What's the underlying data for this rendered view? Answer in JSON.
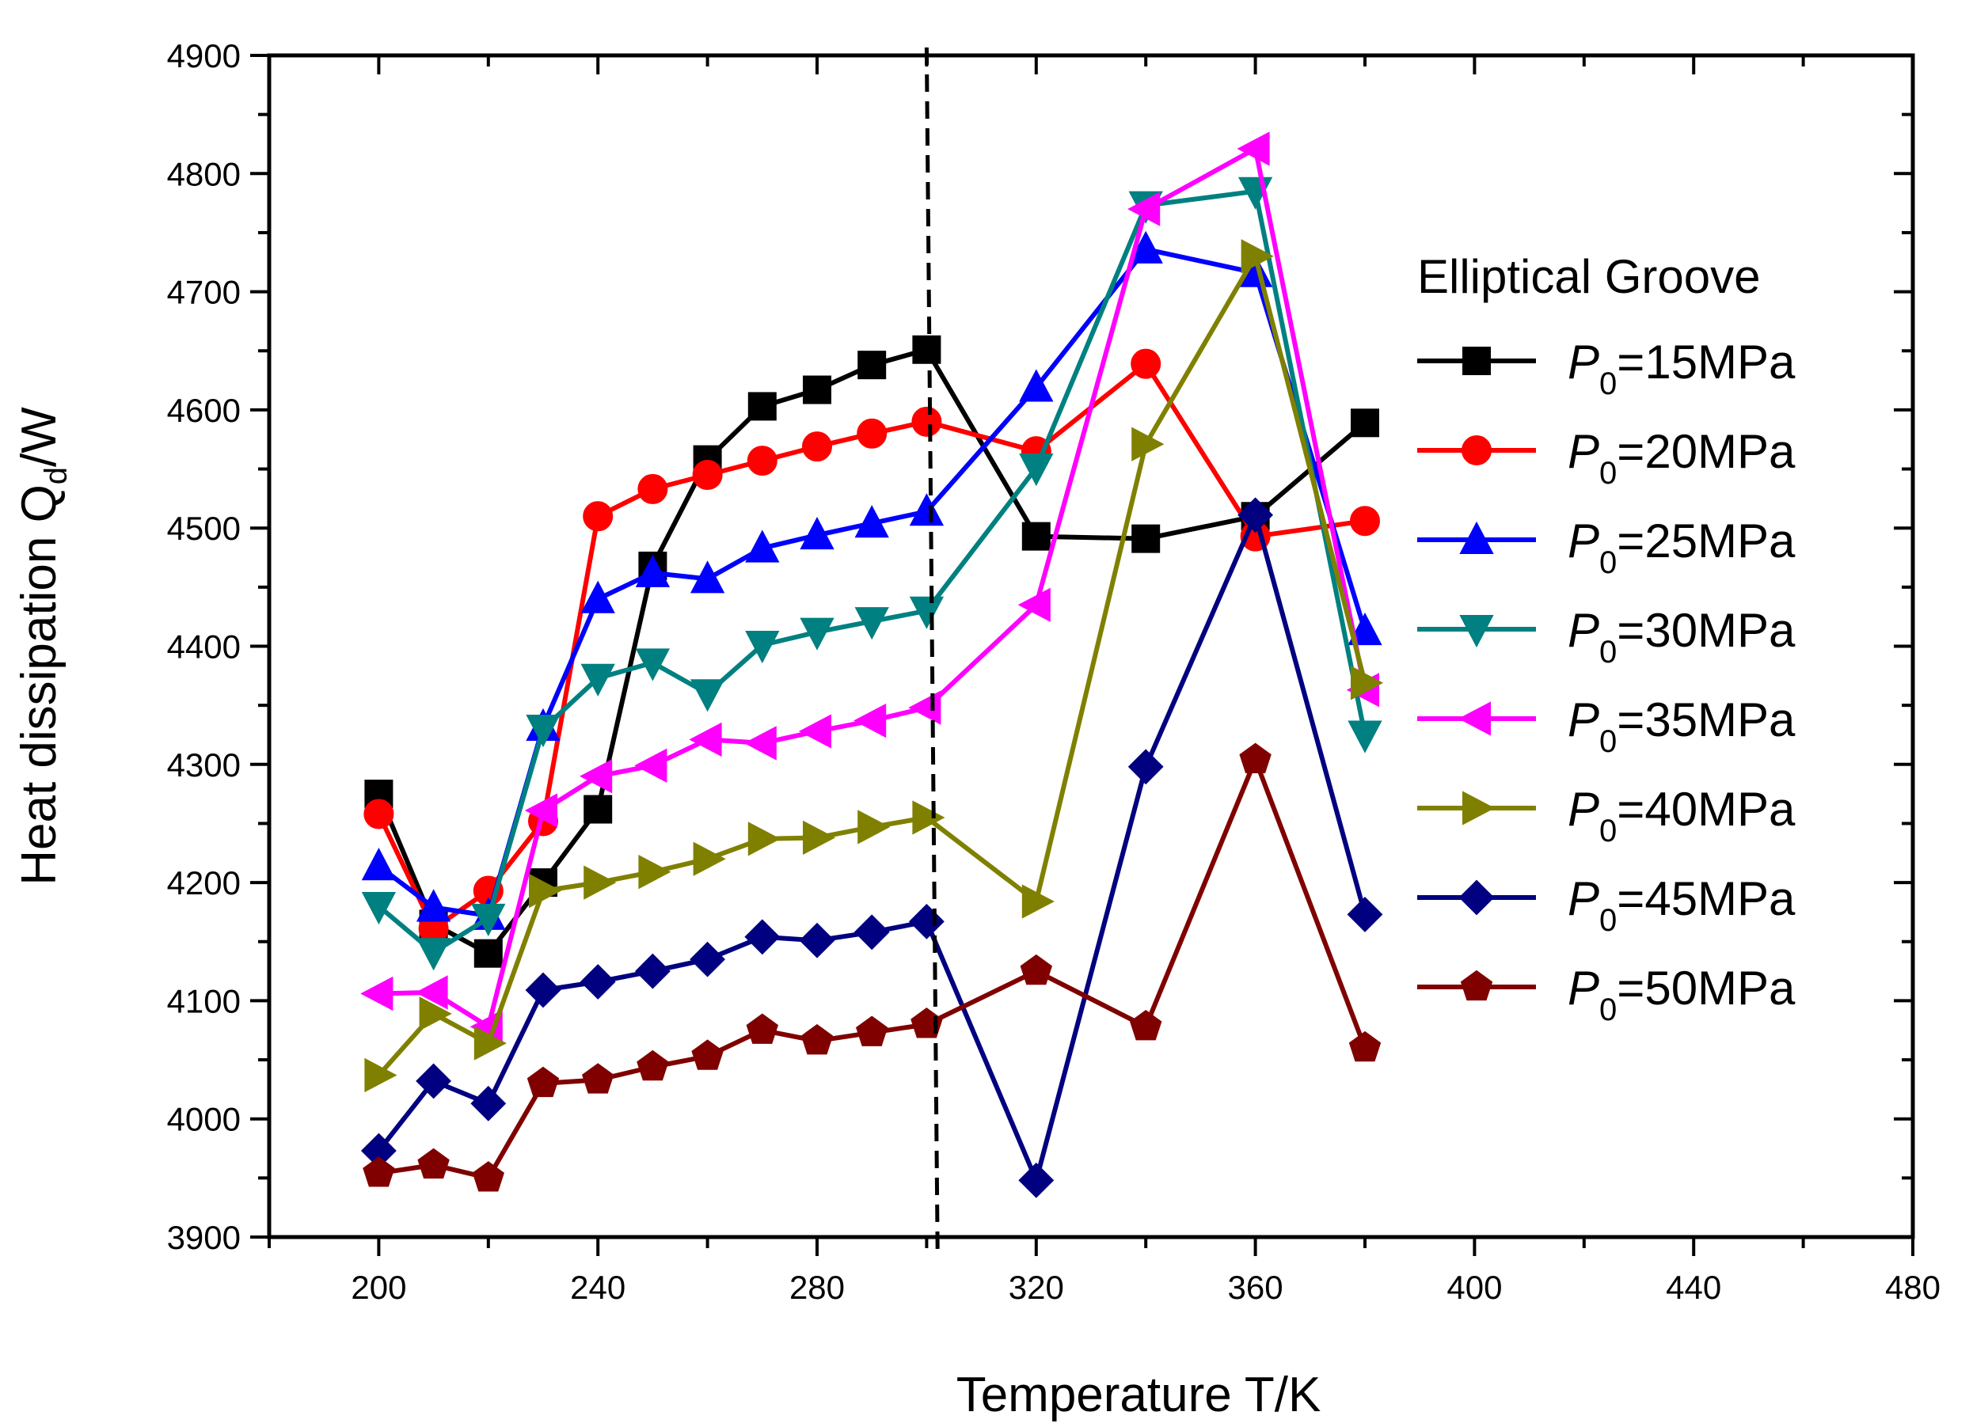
{
  "chart_data": {
    "type": "line",
    "title": "",
    "xlabel": "Temperature T/K",
    "ylabel": "Heat dissipation Q",
    "ylabel_subscript": "d",
    "ylabel_suffix": "/W",
    "xlim": [
      180,
      480
    ],
    "ylim": [
      3900,
      4900
    ],
    "xticks": [
      200,
      240,
      280,
      320,
      360,
      400,
      440,
      480
    ],
    "yticks": [
      3900,
      4000,
      4100,
      4200,
      4300,
      4400,
      4500,
      4600,
      4700,
      4800,
      4900
    ],
    "legend_title": "Elliptical Groove",
    "legend_position": "right",
    "reference_line": {
      "style": "dashed",
      "x_top": 300,
      "x_bottom": 302
    },
    "x": [
      200,
      210,
      220,
      230,
      240,
      250,
      260,
      270,
      280,
      290,
      300,
      320,
      340,
      360,
      380
    ],
    "series": [
      {
        "name_prefix": "P",
        "name_sub": "0",
        "name_suffix": "=15MPa",
        "color": "#000000",
        "marker": "square",
        "values": [
          4275,
          4165,
          4140,
          4200,
          4262,
          4468,
          4558,
          4603,
          4617,
          4638,
          4651,
          4493,
          4491,
          4510,
          4589
        ]
      },
      {
        "name_prefix": "P",
        "name_sub": "0",
        "name_suffix": "=20MPa",
        "color": "#ff0000",
        "marker": "circle",
        "values": [
          4258,
          4161,
          4193,
          4252,
          4510,
          4533,
          4545,
          4557,
          4569,
          4580,
          4590,
          4565,
          4639,
          4493,
          4506
        ]
      },
      {
        "name_prefix": "P",
        "name_sub": "0",
        "name_suffix": "=25MPa",
        "color": "#0000ff",
        "marker": "triangle-up",
        "values": [
          4214,
          4179,
          4172,
          4332,
          4440,
          4462,
          4457,
          4483,
          4494,
          4504,
          4514,
          4619,
          4736,
          4716,
          4413
        ]
      },
      {
        "name_prefix": "P",
        "name_sub": "0",
        "name_suffix": "=30MPa",
        "color": "#008080",
        "marker": "triangle-down",
        "values": [
          4180,
          4141,
          4170,
          4330,
          4373,
          4386,
          4360,
          4401,
          4412,
          4421,
          4430,
          4551,
          4773,
          4785,
          4325
        ]
      },
      {
        "name_prefix": "P",
        "name_sub": "0",
        "name_suffix": "=35MPa",
        "color": "#ff00ff",
        "marker": "triangle-left",
        "values": [
          4106,
          4107,
          4078,
          4261,
          4290,
          4299,
          4321,
          4318,
          4328,
          4337,
          4348,
          4435,
          4770,
          4821,
          4363
        ]
      },
      {
        "name_prefix": "P",
        "name_sub": "0",
        "name_suffix": "=40MPa",
        "color": "#808000",
        "marker": "triangle-right",
        "values": [
          4037,
          4089,
          4064,
          4193,
          4200,
          4209,
          4220,
          4237,
          4238,
          4247,
          4255,
          4184,
          4571,
          4730,
          4369
        ]
      },
      {
        "name_prefix": "P",
        "name_sub": "0",
        "name_suffix": "=45MPa",
        "color": "#000080",
        "marker": "diamond",
        "values": [
          3973,
          4032,
          4013,
          4109,
          4116,
          4125,
          4135,
          4154,
          4151,
          4158,
          4167,
          3948,
          4298,
          4511,
          4173
        ]
      },
      {
        "name_prefix": "P",
        "name_sub": "0",
        "name_suffix": "=50MPa",
        "color": "#800000",
        "marker": "pentagon",
        "values": [
          3954,
          3961,
          3950,
          4030,
          4033,
          4044,
          4053,
          4075,
          4066,
          4073,
          4080,
          4125,
          4078,
          4304,
          4060
        ]
      }
    ]
  }
}
